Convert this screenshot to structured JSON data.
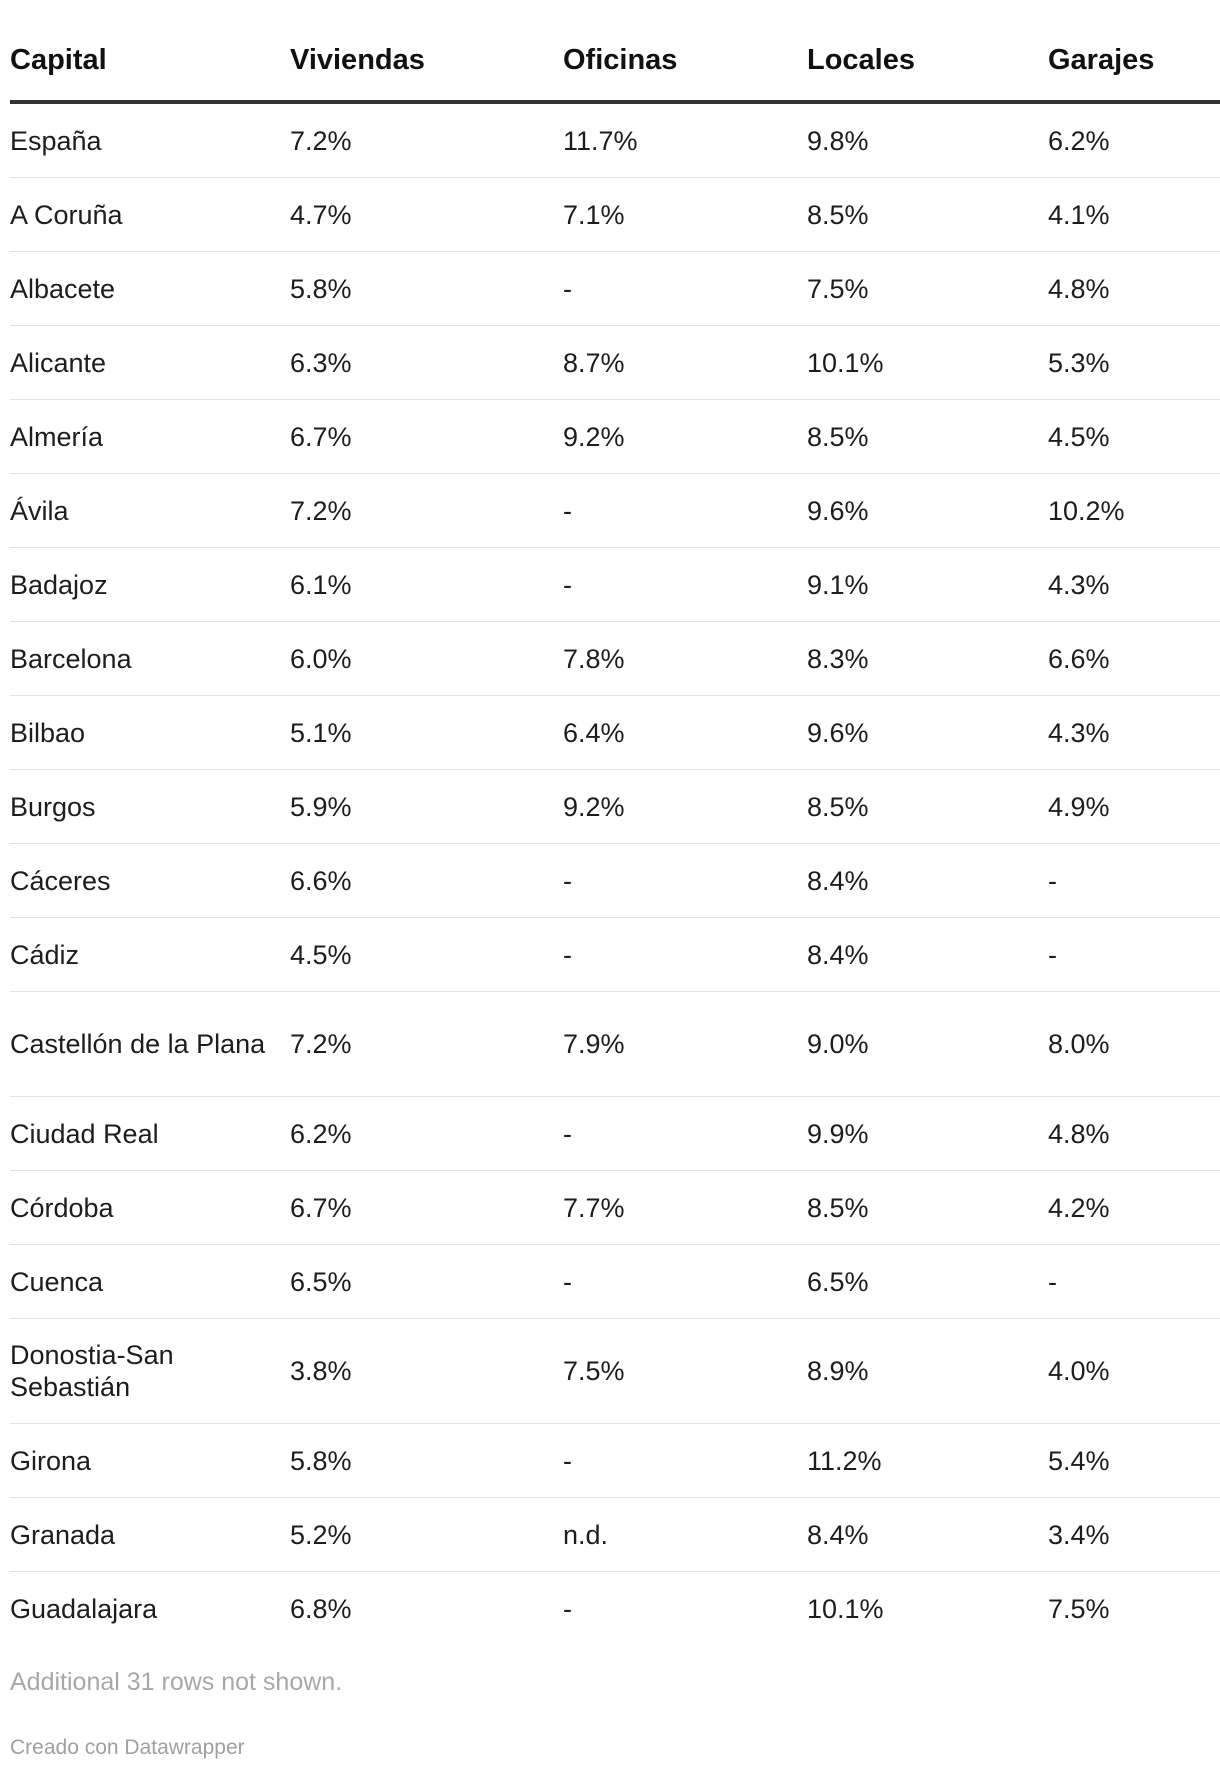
{
  "chart_data": {
    "type": "table",
    "columns": [
      "Capital",
      "Viviendas",
      "Oficinas",
      "Locales",
      "Garajes"
    ],
    "rows": [
      [
        "España",
        "7.2%",
        "11.7%",
        "9.8%",
        "6.2%"
      ],
      [
        "A Coruña",
        "4.7%",
        "7.1%",
        "8.5%",
        "4.1%"
      ],
      [
        "Albacete",
        "5.8%",
        "-",
        "7.5%",
        "4.8%"
      ],
      [
        "Alicante",
        "6.3%",
        "8.7%",
        "10.1%",
        "5.3%"
      ],
      [
        "Almería",
        "6.7%",
        "9.2%",
        "8.5%",
        "4.5%"
      ],
      [
        "Ávila",
        "7.2%",
        "-",
        "9.6%",
        "10.2%"
      ],
      [
        "Badajoz",
        "6.1%",
        "-",
        "9.1%",
        "4.3%"
      ],
      [
        "Barcelona",
        "6.0%",
        "7.8%",
        "8.3%",
        "6.6%"
      ],
      [
        "Bilbao",
        "5.1%",
        "6.4%",
        "9.6%",
        "4.3%"
      ],
      [
        "Burgos",
        "5.9%",
        "9.2%",
        "8.5%",
        "4.9%"
      ],
      [
        "Cáceres",
        "6.6%",
        "-",
        "8.4%",
        "-"
      ],
      [
        "Cádiz",
        "4.5%",
        "-",
        "8.4%",
        "-"
      ],
      [
        "Castellón de la Plana",
        "7.2%",
        "7.9%",
        "9.0%",
        "8.0%"
      ],
      [
        "Ciudad Real",
        "6.2%",
        "-",
        "9.9%",
        "4.8%"
      ],
      [
        "Córdoba",
        "6.7%",
        "7.7%",
        "8.5%",
        "4.2%"
      ],
      [
        "Cuenca",
        "6.5%",
        "-",
        "6.5%",
        "-"
      ],
      [
        "Donostia-San Sebastián",
        "3.8%",
        "7.5%",
        "8.9%",
        "4.0%"
      ],
      [
        "Girona",
        "5.8%",
        "-",
        "11.2%",
        "5.4%"
      ],
      [
        "Granada",
        "5.2%",
        "n.d.",
        "8.4%",
        "3.4%"
      ],
      [
        "Guadalajara",
        "6.8%",
        "-",
        "10.1%",
        "7.5%"
      ]
    ],
    "footer_note": "Additional 31 rows not shown.",
    "credit": "Creado con Datawrapper"
  },
  "colors": {
    "text": "#1d1d1d",
    "header_rule": "#333333",
    "row_rule": "#e2e2e2",
    "muted": "#a8a8a8"
  }
}
